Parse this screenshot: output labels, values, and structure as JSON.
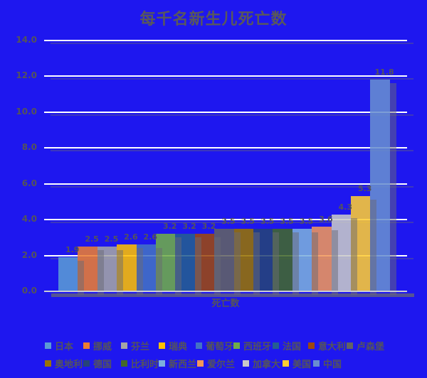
{
  "title": "每千名新生儿死亡数",
  "chart_data": {
    "type": "bar",
    "title": "每千名新生儿死亡数",
    "categories": [
      "日本",
      "挪威",
      "芬兰",
      "瑞典",
      "葡萄牙",
      "西班牙",
      "法国",
      "意大利",
      "卢森堡",
      "奥地利",
      "德国",
      "比利时",
      "新西兰",
      "爱尔兰",
      "加拿大",
      "美国",
      "中国"
    ],
    "values": [
      1.9,
      2.5,
      2.5,
      2.6,
      2.6,
      3.2,
      3.2,
      3.2,
      3.5,
      3.5,
      3.5,
      3.5,
      3.5,
      3.6,
      4.3,
      5.3,
      11.8
    ],
    "colors": [
      "#5B9BD5",
      "#ED7D31",
      "#A5A5A5",
      "#FFC000",
      "#4472C4",
      "#70AD47",
      "#255E91",
      "#9E480E",
      "#636363",
      "#997300",
      "#264478",
      "#43682B",
      "#7CAFDD",
      "#F1975A",
      "#C9C9C9",
      "#FFCD33",
      "#698ED0"
    ],
    "data_labels": [
      "1.9",
      "2.5",
      "2.5",
      "2.6",
      "2.6",
      "3.2",
      "3.2",
      "3.2",
      "3.5",
      "3.5",
      "3.5",
      "3.5",
      "3.5",
      "3.6",
      "4.3",
      "5.3",
      "11.8"
    ],
    "xlabel": "死亡数",
    "ylabel": "",
    "ylim": [
      0,
      14
    ],
    "ytick_step": 2,
    "ytick_labels": [
      "0.0",
      "2.0",
      "4.0",
      "6.0",
      "8.0",
      "10.0",
      "12.0",
      "14.0"
    ],
    "grid": true,
    "legend_position": "bottom",
    "legend_rows": [
      [
        "日本",
        "挪威",
        "芬兰",
        "瑞典",
        "葡萄牙",
        "西班牙",
        "法国",
        "意大利",
        "卢森堡"
      ],
      [
        "奥地利",
        "德国",
        "比利时",
        "新西兰",
        "爱尔兰",
        "加拿大",
        "美国",
        "中国"
      ]
    ]
  },
  "style": {
    "background": "#1E17EF",
    "gridline_color": "#FFFFFF",
    "baseline_color": "#C9CCD4",
    "text_color": "#55545A",
    "title_color": "#59585C",
    "shadow_color_rgb": "106,106,116"
  }
}
